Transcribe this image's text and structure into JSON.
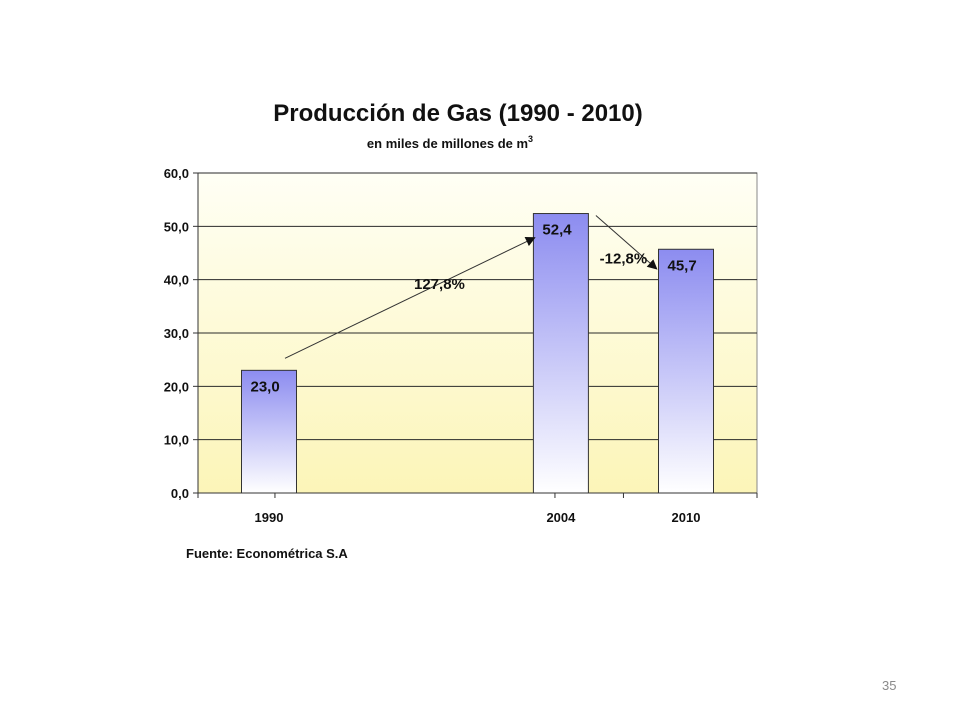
{
  "page_number": "35",
  "chart_data": {
    "type": "bar",
    "title": "Producción de Gas (1990 - 2010)",
    "subtitle": "en miles de millones de m",
    "subtitle_sup": "3",
    "categories": [
      "1990",
      "2004",
      "2010"
    ],
    "values": [
      23.0,
      52.4,
      45.7
    ],
    "value_labels": [
      "23,0",
      "52,4",
      "45,7"
    ],
    "ylim": [
      0,
      60
    ],
    "yticks": [
      "0,0",
      "10,0",
      "20,0",
      "30,0",
      "40,0",
      "50,0",
      "60,0"
    ],
    "grid": true,
    "annotations": [
      {
        "text": "127,8%",
        "from": "1990",
        "to": "2004"
      },
      {
        "text": "-12,8%",
        "from": "2004",
        "to": "2010"
      }
    ],
    "source": "Fuente: Econométrica S.A",
    "colors": {
      "bar_top": "#8c8cf0",
      "bar_bottom": "#ffffff",
      "plot_top": "#fffff5",
      "plot_bottom": "#fcf5b8",
      "gridline": "#2a2a2a"
    }
  }
}
